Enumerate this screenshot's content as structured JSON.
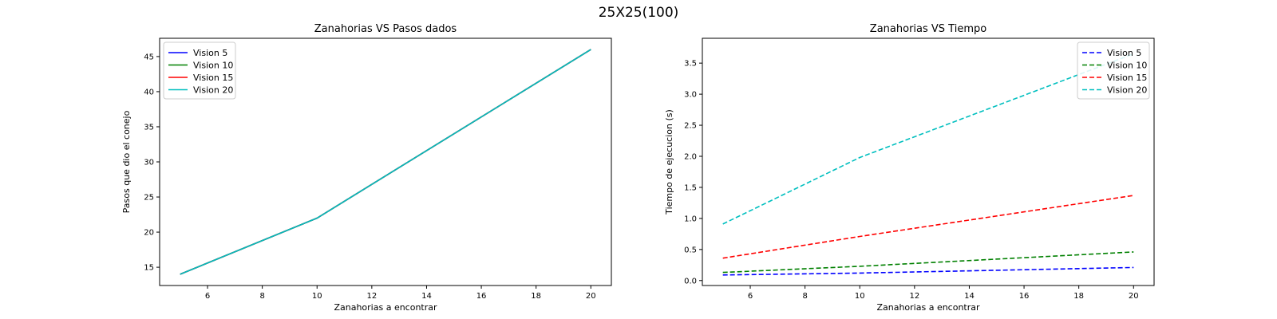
{
  "figure": {
    "suptitle": "25X25(100)"
  },
  "colors": {
    "Vision 5": "#0000ff",
    "Vision 10": "#008000",
    "Vision 15": "#ff0000",
    "Vision 20": "#00bfbf"
  },
  "chart_data": [
    {
      "type": "line",
      "title": "Zanahorias VS Pasos dados",
      "xlabel": "Zanahorias a encontrar",
      "ylabel": "Pasos que dio el conejo",
      "x": [
        5,
        10,
        20
      ],
      "xlim": [
        4.25,
        20.75
      ],
      "ylim": [
        12.4,
        47.6
      ],
      "xticks": [
        6,
        8,
        10,
        12,
        14,
        16,
        18,
        20
      ],
      "yticks": [
        15,
        20,
        25,
        30,
        35,
        40,
        45
      ],
      "line_style": "solid",
      "legend_position": "upper-left",
      "grid": false,
      "series": [
        {
          "name": "Vision 5",
          "values": [
            14,
            22,
            46
          ]
        },
        {
          "name": "Vision 10",
          "values": [
            14,
            22,
            46
          ]
        },
        {
          "name": "Vision 15",
          "values": [
            14,
            22,
            46
          ]
        },
        {
          "name": "Vision 20",
          "values": [
            14,
            22,
            46
          ]
        }
      ]
    },
    {
      "type": "line",
      "title": "Zanahorias VS Tiempo",
      "xlabel": "Zanahorias a encontrar",
      "ylabel": "Tiempo de ejecucion (s)",
      "x": [
        5,
        10,
        20
      ],
      "xlim": [
        4.25,
        20.75
      ],
      "ylim": [
        -0.08,
        3.9
      ],
      "xticks": [
        6,
        8,
        10,
        12,
        14,
        16,
        18,
        20
      ],
      "yticks": [
        0.0,
        0.5,
        1.0,
        1.5,
        2.0,
        2.5,
        3.0,
        3.5
      ],
      "line_style": "dashed",
      "legend_position": "upper-right",
      "grid": false,
      "series": [
        {
          "name": "Vision 5",
          "values": [
            0.09,
            0.12,
            0.21
          ]
        },
        {
          "name": "Vision 10",
          "values": [
            0.13,
            0.23,
            0.46
          ]
        },
        {
          "name": "Vision 15",
          "values": [
            0.36,
            0.71,
            1.37
          ]
        },
        {
          "name": "Vision 20",
          "values": [
            0.91,
            1.98,
            3.65
          ]
        }
      ]
    }
  ]
}
